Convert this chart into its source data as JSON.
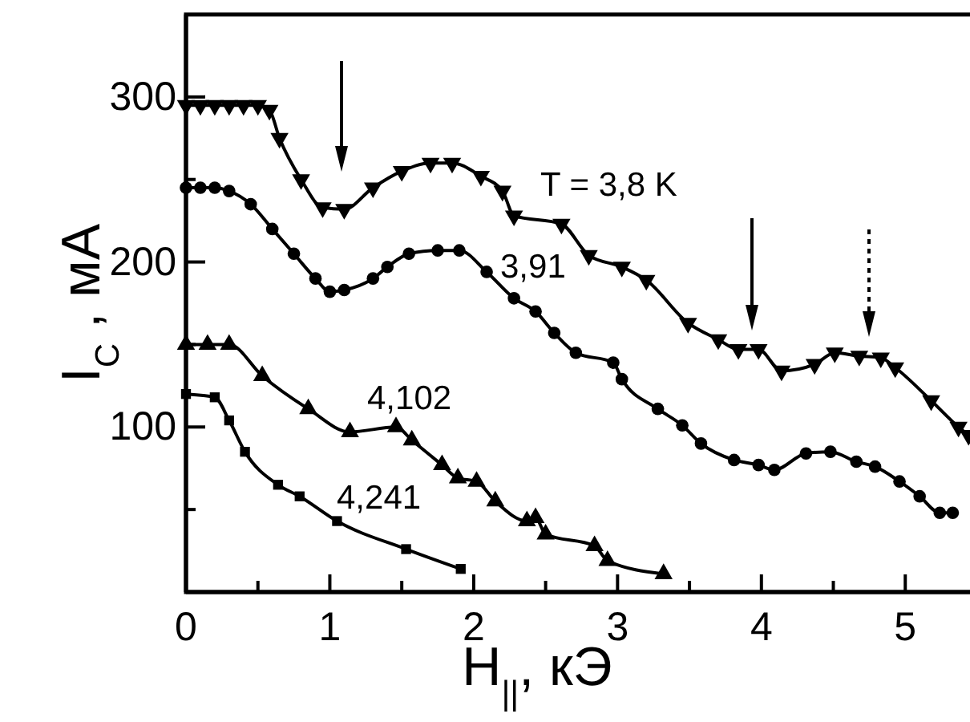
{
  "chart_data": {
    "type": "line",
    "xlabel": "H$_{||}$, кЭ",
    "ylabel": "I$_{C}$ , мА",
    "xlim": [
      0,
      5.45
    ],
    "ylim": [
      0,
      350
    ],
    "xticks": [
      0,
      {
        "value": 0.5,
        "label": null
      },
      1,
      {
        "value": 1.5,
        "label": null
      },
      2,
      {
        "value": 2.5,
        "label": null
      },
      3,
      {
        "value": 3.5,
        "label": null
      },
      4,
      {
        "value": 4.5,
        "label": null
      },
      5
    ],
    "yticks": [
      {
        "value": 50,
        "label": null
      },
      100,
      {
        "value": 150,
        "label": null
      },
      200,
      {
        "value": 250,
        "label": null
      },
      300
    ],
    "grid": false,
    "legend": false,
    "line_style": "solid",
    "series": [
      {
        "name": "T = 3,8 K",
        "color": "#000000",
        "marker": "triangle-down",
        "x": [
          0,
          0.1,
          0.2,
          0.3,
          0.4,
          0.5,
          0.58,
          0.65,
          0.8,
          0.95,
          1.1,
          1.3,
          1.5,
          1.7,
          1.85,
          2.05,
          2.2,
          2.28,
          2.61,
          2.8,
          3.03,
          3.2,
          3.49,
          3.7,
          3.84,
          3.98,
          4.14,
          4.37,
          4.51,
          4.68,
          4.83,
          4.93,
          5.18,
          5.37,
          5.44
        ],
        "values": [
          295,
          295,
          295,
          295,
          295,
          295,
          292,
          275,
          250,
          233,
          232,
          245,
          255,
          260,
          260,
          252,
          243,
          228,
          223,
          204,
          197,
          189,
          163,
          153,
          147,
          147,
          134,
          138,
          145,
          143,
          142,
          136,
          116,
          100,
          95
        ]
      },
      {
        "name": "3,91",
        "color": "#000000",
        "marker": "circle",
        "x": [
          0,
          0.1,
          0.2,
          0.3,
          0.45,
          0.6,
          0.75,
          0.9,
          1.0,
          1.1,
          1.3,
          1.4,
          1.55,
          1.75,
          1.9,
          2.09,
          2.28,
          2.43,
          2.56,
          2.71,
          2.97,
          3.03,
          3.28,
          3.45,
          3.58,
          3.81,
          3.98,
          4.09,
          4.31,
          4.48,
          4.66,
          4.79,
          4.96,
          5.1,
          5.24,
          5.33
        ],
        "values": [
          245,
          245,
          245,
          243,
          235,
          220,
          205,
          190,
          182,
          183,
          190,
          197,
          205,
          207,
          207,
          194,
          178,
          170,
          157,
          145,
          139,
          129,
          111,
          101,
          90,
          80,
          77,
          74,
          84,
          85,
          79,
          76,
          67,
          58,
          48,
          48
        ]
      },
      {
        "name": "4,102",
        "color": "#000000",
        "marker": "triangle",
        "x": [
          0,
          0.15,
          0.3,
          0.53,
          0.85,
          1.14,
          1.46,
          1.57,
          1.78,
          1.89,
          2.02,
          2.15,
          2.37,
          2.43,
          2.5,
          2.84,
          2.93,
          3.32
        ],
        "values": [
          150,
          150,
          150,
          131,
          111,
          97,
          100,
          92,
          77,
          69,
          67,
          55,
          43,
          45,
          35,
          28,
          19,
          11
        ]
      },
      {
        "name": "4,241",
        "color": "#000000",
        "marker": "square",
        "x": [
          0,
          0.2,
          0.3,
          0.41,
          0.64,
          0.79,
          1.05,
          1.53,
          1.91
        ],
        "values": [
          120,
          118,
          104,
          85,
          65,
          58,
          43,
          26,
          14
        ]
      }
    ]
  }
}
